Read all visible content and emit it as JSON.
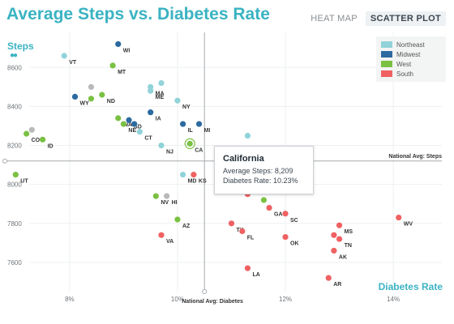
{
  "title": "Average Steps vs. Diabetes Rate",
  "tabs": [
    {
      "label": "HEAT MAP",
      "active": false
    },
    {
      "label": "SCATTER PLOT",
      "active": true
    }
  ],
  "legend": [
    {
      "name": "Northeast",
      "color": "#91d3d9"
    },
    {
      "name": "Midwest",
      "color": "#2c6aa0"
    },
    {
      "name": "West",
      "color": "#7ac143"
    },
    {
      "name": "South",
      "color": "#ef6162"
    }
  ],
  "tooltip": {
    "state": "California",
    "steps_text": "Average Steps: 8,209",
    "rate_text": "Diabetes Rate: 10.23%"
  },
  "chart_data": {
    "type": "scatter",
    "ylabel": "Steps",
    "xlabel": "Diabetes Rate",
    "x_ticks": [
      "8%",
      "10%",
      "12%",
      "14%"
    ],
    "y_ticks": [
      "7600",
      "7800",
      "8000",
      "8200",
      "8400",
      "8600"
    ],
    "xlim": [
      6.8,
      14.9
    ],
    "ylim": [
      7450,
      8780
    ],
    "avg_lines": {
      "x": 10.5,
      "x_label": "National Avg: Diabetes",
      "y": 8120,
      "y_label": "National Avg: Steps"
    },
    "unlabeled_color": "#b7b9bb",
    "points": [
      {
        "label": "VT",
        "x": 7.9,
        "y": 8660,
        "region": "Northeast"
      },
      {
        "label": "WI",
        "x": 8.9,
        "y": 8720,
        "region": "Midwest"
      },
      {
        "label": "MT",
        "x": 8.8,
        "y": 8610,
        "region": "West"
      },
      {
        "label": "MA",
        "x": 9.5,
        "y": 8500,
        "region": "Northeast"
      },
      {
        "label": "",
        "x": 9.7,
        "y": 8520,
        "region": "Northeast"
      },
      {
        "label": "ME",
        "x": 9.5,
        "y": 8480,
        "region": "Northeast"
      },
      {
        "label": "WY",
        "x": 8.1,
        "y": 8450,
        "region": "Midwest"
      },
      {
        "label": "",
        "x": 8.4,
        "y": 8500,
        "region": "Unlabeled"
      },
      {
        "label": "",
        "x": 8.4,
        "y": 8440,
        "region": "West"
      },
      {
        "label": "ND",
        "x": 8.6,
        "y": 8460,
        "region": "West"
      },
      {
        "label": "NY",
        "x": 10.0,
        "y": 8430,
        "region": "Northeast"
      },
      {
        "label": "WA",
        "x": 8.9,
        "y": 8340,
        "region": "West"
      },
      {
        "label": "SD",
        "x": 9.1,
        "y": 8330,
        "region": "Midwest"
      },
      {
        "label": "NE",
        "x": 9.0,
        "y": 8310,
        "region": "West"
      },
      {
        "label": "",
        "x": 9.2,
        "y": 8310,
        "region": "Midwest"
      },
      {
        "label": "IA",
        "x": 9.5,
        "y": 8370,
        "region": "Midwest"
      },
      {
        "label": "CT",
        "x": 9.3,
        "y": 8270,
        "region": "Northeast"
      },
      {
        "label": "IL",
        "x": 10.1,
        "y": 8310,
        "region": "Midwest"
      },
      {
        "label": "MI",
        "x": 10.4,
        "y": 8310,
        "region": "Midwest"
      },
      {
        "label": "CA",
        "x": 10.23,
        "y": 8209,
        "region": "West"
      },
      {
        "label": "NJ",
        "x": 9.7,
        "y": 8200,
        "region": "Northeast"
      },
      {
        "label": "CO",
        "x": 7.2,
        "y": 8260,
        "region": "West"
      },
      {
        "label": "",
        "x": 7.3,
        "y": 8280,
        "region": "Unlabeled"
      },
      {
        "label": "ID",
        "x": 7.5,
        "y": 8230,
        "region": "West"
      },
      {
        "label": "",
        "x": 11.3,
        "y": 8250,
        "region": "Northeast"
      },
      {
        "label": "UT",
        "x": 7.0,
        "y": 8050,
        "region": "West"
      },
      {
        "label": "MD",
        "x": 10.1,
        "y": 8050,
        "region": "Northeast"
      },
      {
        "label": "KS",
        "x": 10.3,
        "y": 8050,
        "region": "South"
      },
      {
        "label": "NV",
        "x": 9.6,
        "y": 7940,
        "region": "West"
      },
      {
        "label": "HI",
        "x": 9.8,
        "y": 7940,
        "region": "Unlabeled"
      },
      {
        "label": "",
        "x": 11.3,
        "y": 7950,
        "region": "South"
      },
      {
        "label": "",
        "x": 11.6,
        "y": 7920,
        "region": "West"
      },
      {
        "label": "GA",
        "x": 11.7,
        "y": 7880,
        "region": "South"
      },
      {
        "label": "SC",
        "x": 12.0,
        "y": 7850,
        "region": "South"
      },
      {
        "label": "AZ",
        "x": 10.0,
        "y": 7820,
        "region": "West"
      },
      {
        "label": "TX",
        "x": 11.0,
        "y": 7800,
        "region": "South"
      },
      {
        "label": "FL",
        "x": 11.2,
        "y": 7760,
        "region": "South"
      },
      {
        "label": "VA",
        "x": 9.7,
        "y": 7740,
        "region": "South"
      },
      {
        "label": "OK",
        "x": 12.0,
        "y": 7730,
        "region": "South"
      },
      {
        "label": "MS",
        "x": 13.0,
        "y": 7790,
        "region": "South"
      },
      {
        "label": "",
        "x": 12.9,
        "y": 7740,
        "region": "South"
      },
      {
        "label": "TN",
        "x": 13.0,
        "y": 7720,
        "region": "South"
      },
      {
        "label": "AK",
        "x": 12.9,
        "y": 7660,
        "region": "South"
      },
      {
        "label": "WV",
        "x": 14.1,
        "y": 7830,
        "region": "South"
      },
      {
        "label": "LA",
        "x": 11.3,
        "y": 7570,
        "region": "South"
      },
      {
        "label": "AR",
        "x": 12.8,
        "y": 7520,
        "region": "South"
      }
    ]
  }
}
